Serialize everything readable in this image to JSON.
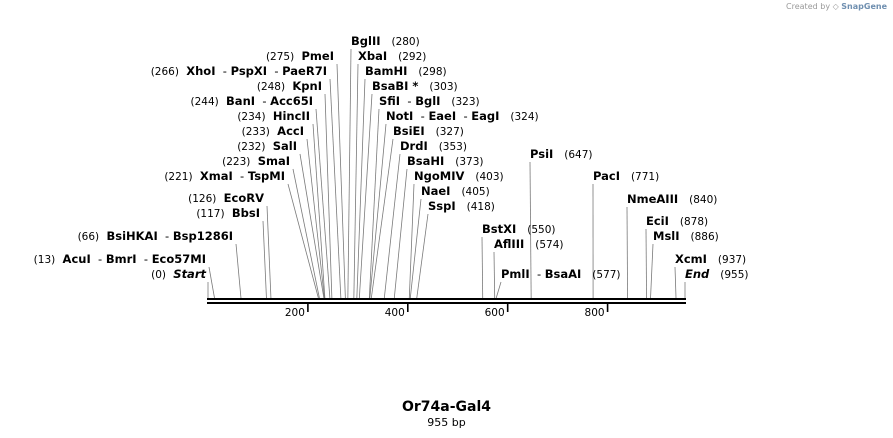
{
  "credit": {
    "prefix": "Created by",
    "brand": "SnapGene"
  },
  "map": {
    "name": "Or74a-Gal4",
    "length_label": "955 bp",
    "length": 955,
    "ticks": [
      200,
      400,
      600,
      800
    ],
    "lines": [
      {
        "parts": [
          "Start"
        ],
        "italic": true,
        "pos": "(0)",
        "bp": 0
      },
      {
        "parts": [
          "AcuI",
          "BmrI",
          "Eco57MI"
        ],
        "pos": "(13)",
        "bp": 13
      },
      {
        "parts": [
          "BsiHKAI",
          "Bsp1286I"
        ],
        "pos": "(66)",
        "bp": 66
      },
      {
        "parts": [
          "BbsI"
        ],
        "pos": "(117)",
        "bp": 117
      },
      {
        "parts": [
          "EcoRV"
        ],
        "pos": "(126)",
        "bp": 126
      },
      {
        "parts": [
          "XmaI",
          "TspMI"
        ],
        "pos": "(221)",
        "bp": 221
      },
      {
        "parts": [
          "SmaI"
        ],
        "pos": "(223)",
        "bp": 223
      },
      {
        "parts": [
          "SalI"
        ],
        "pos": "(232)",
        "bp": 232
      },
      {
        "parts": [
          "AccI"
        ],
        "pos": "(233)",
        "bp": 233
      },
      {
        "parts": [
          "HincII"
        ],
        "pos": "(234)",
        "bp": 234
      },
      {
        "parts": [
          "BanI",
          "Acc65I"
        ],
        "pos": "(244)",
        "bp": 244
      },
      {
        "parts": [
          "KpnI"
        ],
        "pos": "(248)",
        "bp": 248
      },
      {
        "parts": [
          "XhoI",
          "PspXI",
          "PaeR7I"
        ],
        "pos": "(266)",
        "bp": 266
      },
      {
        "parts": [
          "PmeI"
        ],
        "pos": "(275)",
        "bp": 275
      },
      {
        "parts": [
          "BglII"
        ],
        "pos": "(280)",
        "bp": 280
      },
      {
        "parts": [
          "XbaI"
        ],
        "pos": "(292)",
        "bp": 292
      },
      {
        "parts": [
          "BamHI"
        ],
        "pos": "(298)",
        "bp": 298
      },
      {
        "parts": [
          "BsaBI *"
        ],
        "pos": "(303)",
        "bp": 303
      },
      {
        "parts": [
          "SfiI",
          "BglI"
        ],
        "pos": "(323)",
        "bp": 323
      },
      {
        "parts": [
          "NotI",
          "EaeI",
          "EagI"
        ],
        "pos": "(324)",
        "bp": 324
      },
      {
        "parts": [
          "BsiEI"
        ],
        "pos": "(327)",
        "bp": 327
      },
      {
        "parts": [
          "DrdI"
        ],
        "pos": "(353)",
        "bp": 353
      },
      {
        "parts": [
          "BsaHI"
        ],
        "pos": "(373)",
        "bp": 373
      },
      {
        "parts": [
          "NgoMIV"
        ],
        "pos": "(403)",
        "bp": 403
      },
      {
        "parts": [
          "NaeI"
        ],
        "pos": "(405)",
        "bp": 405
      },
      {
        "parts": [
          "SspI"
        ],
        "pos": "(418)",
        "bp": 418
      },
      {
        "parts": [
          "BstXI"
        ],
        "pos": "(550)",
        "bp": 550
      },
      {
        "parts": [
          "AflIII"
        ],
        "pos": "(574)",
        "bp": 574
      },
      {
        "parts": [
          "PmlI",
          "BsaAI"
        ],
        "pos": "(577)",
        "bp": 577
      },
      {
        "parts": [
          "PsiI"
        ],
        "pos": "(647)",
        "bp": 647
      },
      {
        "parts": [
          "PacI"
        ],
        "pos": "(771)",
        "bp": 771
      },
      {
        "parts": [
          "NmeAIII"
        ],
        "pos": "(840)",
        "bp": 840
      },
      {
        "parts": [
          "EciI"
        ],
        "pos": "(878)",
        "bp": 878
      },
      {
        "parts": [
          "MslI"
        ],
        "pos": "(886)",
        "bp": 886
      },
      {
        "parts": [
          "XcmI"
        ],
        "pos": "(937)",
        "bp": 937
      },
      {
        "parts": [
          "End"
        ],
        "italic": true,
        "pos": "(955)",
        "bp": 955
      }
    ]
  }
}
